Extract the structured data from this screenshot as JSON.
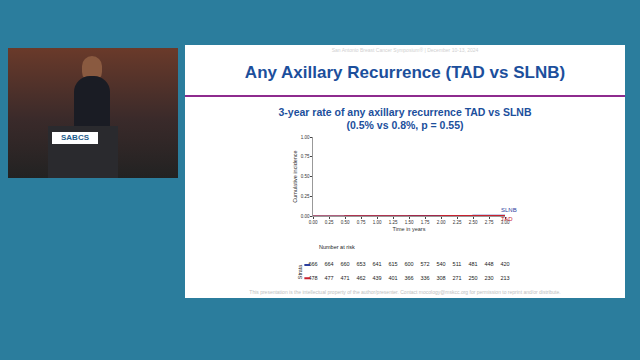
{
  "slide": {
    "title": "Any Axillary Recurrence (TAD vs SLNB)",
    "header_note": "San Antonio Breast Cancer Symposium® | December 10-13, 2024",
    "footer": "This presentation is the intellectual property of the author/presenter. Contact mocology@mskcc.org for permission to reprint and/or distribute.",
    "video_label": "SABCS"
  },
  "chart_data": {
    "type": "line",
    "title": "3-year rate of any axillary recurrence TAD vs SLNB",
    "subtitle": "(0.5% vs 0.8%, p = 0.55)",
    "x_label": "Time in years",
    "y_label": "Cumulative incidence",
    "xlim": [
      0,
      3
    ],
    "ylim": [
      0,
      1
    ],
    "xticks": [
      {
        "value": 0,
        "label": "0.00"
      },
      {
        "value": 0.25,
        "label": "0.25"
      },
      {
        "value": 0.5,
        "label": "0.50"
      },
      {
        "value": 0.75,
        "label": "0.75"
      },
      {
        "value": 1,
        "label": "1.00"
      },
      {
        "value": 1.25,
        "label": "1.25"
      },
      {
        "value": 1.5,
        "label": "1.50"
      },
      {
        "value": 1.75,
        "label": "1.75"
      },
      {
        "value": 2,
        "label": "2.00"
      },
      {
        "value": 2.25,
        "label": "2.25"
      },
      {
        "value": 2.5,
        "label": "2.50"
      },
      {
        "value": 2.75,
        "label": "2.75"
      },
      {
        "value": 3,
        "label": "3.00"
      }
    ],
    "yticks": [
      {
        "value": 0,
        "label": "0.00"
      },
      {
        "value": 0.25,
        "label": "0.25"
      },
      {
        "value": 0.5,
        "label": "0.50"
      },
      {
        "value": 0.75,
        "label": "0.75"
      },
      {
        "value": 1,
        "label": "1.00"
      }
    ],
    "grid": false,
    "series": [
      {
        "name": "SLNB",
        "color": "#2c3e9e",
        "line_style": "step",
        "x": [
          0,
          0.5,
          1,
          1.5,
          2,
          2.5,
          3
        ],
        "values": [
          0,
          0.001,
          0.002,
          0.004,
          0.006,
          0.007,
          0.008
        ]
      },
      {
        "name": "TAD",
        "color": "#c8202f",
        "line_style": "step",
        "x": [
          0,
          0.5,
          1,
          1.5,
          2,
          2.5,
          3
        ],
        "values": [
          0,
          0.001,
          0.002,
          0.003,
          0.004,
          0.005,
          0.005
        ]
      }
    ],
    "risk_table": {
      "title": "Number at risk",
      "label": "Strata",
      "times": [
        0,
        0.25,
        0.5,
        0.75,
        1,
        1.25,
        1.5,
        1.75,
        2,
        2.25,
        2.5,
        2.75,
        3
      ],
      "rows": [
        {
          "color": "#2c3e9e",
          "values": [
            666,
            664,
            660,
            653,
            641,
            615,
            600,
            572,
            540,
            511,
            481,
            448,
            420
          ]
        },
        {
          "color": "#c8202f",
          "values": [
            478,
            477,
            471,
            462,
            439,
            401,
            366,
            336,
            308,
            271,
            250,
            230,
            213
          ]
        }
      ]
    }
  }
}
